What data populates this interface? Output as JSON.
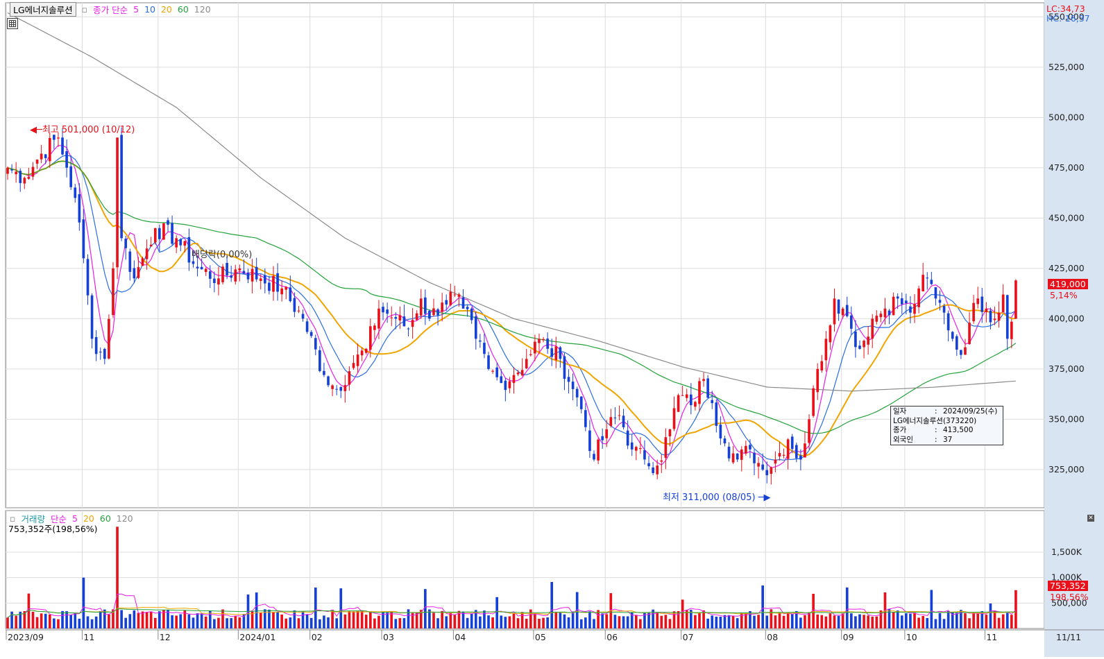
{
  "header": {
    "stock_name": "LG에너지솔루션",
    "price_legend_label": "종가 단순",
    "ma_periods": [
      "5",
      "10",
      "20",
      "60",
      "120"
    ],
    "ma_colors": [
      "#e81ee8",
      "#2a6de0",
      "#f0a500",
      "#23a23a",
      "#8a8a8a"
    ],
    "lc_text": "LC:34,73",
    "hc_text": "HC:-16,37"
  },
  "volume_header": {
    "label": "거래량",
    "legend_label": "단순",
    "ma_periods": [
      "5",
      "20",
      "60",
      "120"
    ],
    "summary": "753,352주(198,56%)"
  },
  "annotations": {
    "high_label": "최고 501,000 (10/12)",
    "low_label": "최저 311,000 (08/05)",
    "dividend_label": "배당락(0,00%)"
  },
  "price_tag": {
    "value": "419,000",
    "change": "5,14%"
  },
  "volume_tag": {
    "value": "753,352",
    "ratio": "198,56%"
  },
  "info_box": {
    "rows": [
      {
        "key": "일자",
        "value": "2024/09/25(수)"
      },
      {
        "key": "LG에너지솔루션(373220)",
        "value": ""
      },
      {
        "key": " 종가",
        "value": "413,500"
      },
      {
        "key": " 외국인",
        "value": "37"
      }
    ]
  },
  "colors": {
    "up": "#e8101a",
    "down": "#1540d6",
    "axis_bg": "#ffffff",
    "grid": "#dcdcdc"
  },
  "chart_data": {
    "type": "candlestick",
    "price_axis": {
      "ylim": [
        306000,
        557000
      ],
      "ticks": [
        "550,000",
        "525,000",
        "500,000",
        "475,000",
        "450,000",
        "425,000",
        "400,000",
        "375,000",
        "350,000",
        "325,000"
      ]
    },
    "volume_axis": {
      "ylim": [
        0,
        2100000
      ],
      "ticks": [
        "1,500K",
        "1,000K",
        "500,000"
      ]
    },
    "x_axis_labels": [
      "2023/09",
      "11",
      "12",
      "2024/01",
      "02",
      "03",
      "04",
      "05",
      "06",
      "07",
      "08",
      "09",
      "10",
      "11",
      "11/11"
    ],
    "anchors": [
      {
        "idx": 0,
        "close": 475000
      },
      {
        "idx": 4,
        "close": 470000
      },
      {
        "idx": 8,
        "close": 482000
      },
      {
        "idx": 12,
        "close": 490000
      },
      {
        "idx": 14,
        "close": 475000
      },
      {
        "idx": 16,
        "close": 460000
      },
      {
        "idx": 18,
        "close": 430000
      },
      {
        "idx": 20,
        "close": 390000
      },
      {
        "idx": 23,
        "close": 380000
      },
      {
        "idx": 25,
        "close": 425000
      },
      {
        "idx": 26,
        "close": 490000
      },
      {
        "idx": 27,
        "close": 440000
      },
      {
        "idx": 30,
        "close": 420000
      },
      {
        "idx": 32,
        "close": 430000
      },
      {
        "idx": 35,
        "close": 445000
      },
      {
        "idx": 40,
        "close": 440000
      },
      {
        "idx": 45,
        "close": 425000
      },
      {
        "idx": 50,
        "close": 420000
      },
      {
        "idx": 55,
        "close": 425000
      },
      {
        "idx": 60,
        "close": 420000
      },
      {
        "idx": 65,
        "close": 415000
      },
      {
        "idx": 70,
        "close": 400000
      },
      {
        "idx": 75,
        "close": 372000
      },
      {
        "idx": 78,
        "close": 365000
      },
      {
        "idx": 82,
        "close": 378000
      },
      {
        "idx": 85,
        "close": 385000
      },
      {
        "idx": 88,
        "close": 405000
      },
      {
        "idx": 92,
        "close": 400000
      },
      {
        "idx": 95,
        "close": 395000
      },
      {
        "idx": 98,
        "close": 410000
      },
      {
        "idx": 100,
        "close": 400000
      },
      {
        "idx": 103,
        "close": 408000
      },
      {
        "idx": 106,
        "close": 412000
      },
      {
        "idx": 108,
        "close": 405000
      },
      {
        "idx": 111,
        "close": 390000
      },
      {
        "idx": 114,
        "close": 375000
      },
      {
        "idx": 117,
        "close": 368000
      },
      {
        "idx": 120,
        "close": 372000
      },
      {
        "idx": 123,
        "close": 380000
      },
      {
        "idx": 126,
        "close": 390000
      },
      {
        "idx": 128,
        "close": 385000
      },
      {
        "idx": 131,
        "close": 380000
      },
      {
        "idx": 134,
        "close": 365000
      },
      {
        "idx": 136,
        "close": 355000
      },
      {
        "idx": 139,
        "close": 330000
      },
      {
        "idx": 142,
        "close": 345000
      },
      {
        "idx": 145,
        "close": 352000
      },
      {
        "idx": 148,
        "close": 335000
      },
      {
        "idx": 151,
        "close": 330000
      },
      {
        "idx": 154,
        "close": 327000
      },
      {
        "idx": 157,
        "close": 345000
      },
      {
        "idx": 159,
        "close": 362000
      },
      {
        "idx": 162,
        "close": 357000
      },
      {
        "idx": 165,
        "close": 370000
      },
      {
        "idx": 167,
        "close": 358000
      },
      {
        "idx": 170,
        "close": 338000
      },
      {
        "idx": 173,
        "close": 330000
      },
      {
        "idx": 176,
        "close": 335000
      },
      {
        "idx": 179,
        "close": 325000
      },
      {
        "idx": 182,
        "close": 330000
      },
      {
        "idx": 185,
        "close": 340000
      },
      {
        "idx": 188,
        "close": 330000
      },
      {
        "idx": 190,
        "close": 350000
      },
      {
        "idx": 192,
        "close": 375000
      },
      {
        "idx": 194,
        "close": 390000
      },
      {
        "idx": 196,
        "close": 410000
      },
      {
        "idx": 198,
        "close": 405000
      },
      {
        "idx": 200,
        "close": 395000
      },
      {
        "idx": 202,
        "close": 385000
      },
      {
        "idx": 205,
        "close": 400000
      },
      {
        "idx": 208,
        "close": 405000
      },
      {
        "idx": 211,
        "close": 410000
      },
      {
        "idx": 214,
        "close": 403000
      },
      {
        "idx": 216,
        "close": 415000
      },
      {
        "idx": 218,
        "close": 420000
      },
      {
        "idx": 220,
        "close": 410000
      },
      {
        "idx": 222,
        "close": 403000
      },
      {
        "idx": 224,
        "close": 390000
      },
      {
        "idx": 226,
        "close": 382000
      },
      {
        "idx": 228,
        "close": 398000
      },
      {
        "idx": 230,
        "close": 410000
      },
      {
        "idx": 232,
        "close": 405000
      },
      {
        "idx": 234,
        "close": 400000
      },
      {
        "idx": 236,
        "close": 412000
      },
      {
        "idx": 237,
        "close": 390000
      },
      {
        "idx": 238,
        "close": 398500
      },
      {
        "idx": 239,
        "close": 419000
      }
    ],
    "bar_count": 240,
    "last_close": 419000,
    "last_volume": 753352,
    "period_high": 501000,
    "period_low": 311000,
    "ma120_anchors": [
      {
        "idx": 0,
        "value": 552000
      },
      {
        "idx": 20,
        "value": 530000
      },
      {
        "idx": 40,
        "value": 505000
      },
      {
        "idx": 60,
        "value": 470000
      },
      {
        "idx": 80,
        "value": 440000
      },
      {
        "idx": 100,
        "value": 418000
      },
      {
        "idx": 120,
        "value": 400000
      },
      {
        "idx": 140,
        "value": 389000
      },
      {
        "idx": 160,
        "value": 376000
      },
      {
        "idx": 180,
        "value": 366000
      },
      {
        "idx": 200,
        "value": 364000
      },
      {
        "idx": 220,
        "value": 366000
      },
      {
        "idx": 239,
        "value": 369000
      }
    ]
  }
}
